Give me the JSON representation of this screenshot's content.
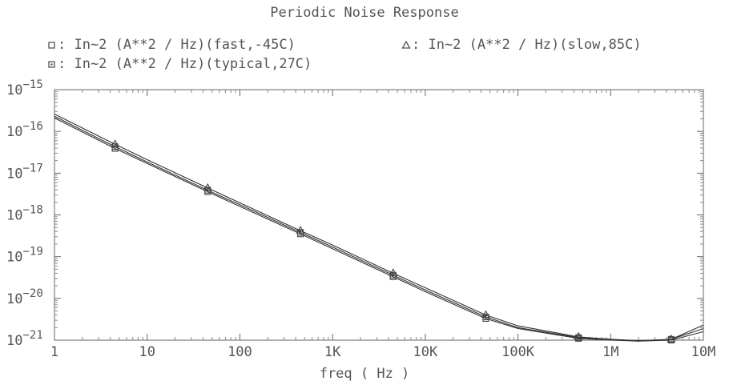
{
  "chart_data": {
    "type": "line",
    "title": "Periodic Noise Response",
    "xlabel": "freq ( Hz )",
    "ylabel": "",
    "xscale": "log",
    "yscale": "log",
    "xlim": [
      1,
      10000000
    ],
    "ylim": [
      1e-21,
      1e-15
    ],
    "x_ticks": [
      {
        "value": 1,
        "label": "1"
      },
      {
        "value": 10,
        "label": "10"
      },
      {
        "value": 100,
        "label": "100"
      },
      {
        "value": 1000,
        "label": "1K"
      },
      {
        "value": 10000,
        "label": "10K"
      },
      {
        "value": 100000,
        "label": "100K"
      },
      {
        "value": 1000000,
        "label": "1M"
      },
      {
        "value": 10000000,
        "label": "10M"
      }
    ],
    "y_ticks": [
      {
        "value": 1e-15,
        "base": "10",
        "exp": "−15"
      },
      {
        "value": 1e-16,
        "base": "10",
        "exp": "−16"
      },
      {
        "value": 1e-17,
        "base": "10",
        "exp": "−17"
      },
      {
        "value": 1e-18,
        "base": "10",
        "exp": "−18"
      },
      {
        "value": 1e-19,
        "base": "10",
        "exp": "−19"
      },
      {
        "value": 1e-20,
        "base": "10",
        "exp": "−20"
      },
      {
        "value": 1e-21,
        "base": "10",
        "exp": "−21"
      }
    ],
    "legend_placement": "top",
    "grid": false,
    "series": [
      {
        "name": ": In~2 (A**2 / Hz)(fast,-45C)",
        "marker": "square",
        "color": "#333333",
        "x": [
          1,
          4.5,
          10,
          45,
          100,
          450,
          1000,
          4500,
          10000,
          45000,
          100000,
          450000,
          1000000,
          2000000,
          4500000,
          10000000
        ],
        "y": [
          2.1e-16,
          3.9e-17,
          1.7e-17,
          3.6e-18,
          1.6e-18,
          3.5e-19,
          1.55e-19,
          3.3e-20,
          1.45e-20,
          3.3e-21,
          1.9e-21,
          1.1e-21,
          1e-21,
          9.5e-22,
          1e-21,
          1.6e-21
        ],
        "marker_x": [
          4.5,
          45,
          450,
          4500,
          45000,
          450000,
          4500000
        ]
      },
      {
        "name": ": In~2 (A**2 / Hz)(typical,27C)",
        "marker": "dot-square",
        "color": "#333333",
        "x": [
          1,
          4.5,
          10,
          45,
          100,
          450,
          1000,
          4500,
          10000,
          45000,
          100000,
          450000,
          1000000,
          2000000,
          4500000,
          10000000
        ],
        "y": [
          2.3e-16,
          4.3e-17,
          1.85e-17,
          3.9e-18,
          1.75e-18,
          3.8e-19,
          1.7e-19,
          3.6e-20,
          1.6e-20,
          3.6e-21,
          2e-21,
          1.15e-21,
          1.05e-21,
          9.8e-22,
          1.05e-21,
          1.9e-21
        ],
        "marker_x": [
          4.5,
          45,
          450,
          4500,
          45000,
          450000,
          4500000
        ]
      },
      {
        "name": ": In~2 (A**2 / Hz)(slow,85C)",
        "marker": "triangle",
        "color": "#333333",
        "x": [
          1,
          4.5,
          10,
          45,
          100,
          450,
          1000,
          4500,
          10000,
          45000,
          100000,
          450000,
          1000000,
          2000000,
          4500000,
          10000000
        ],
        "y": [
          2.6e-16,
          4.9e-17,
          2.1e-17,
          4.4e-18,
          1.95e-18,
          4.2e-19,
          1.9e-19,
          4e-20,
          1.8e-20,
          4e-21,
          2.2e-21,
          1.2e-21,
          1.05e-21,
          9.5e-22,
          1.05e-21,
          2.3e-21
        ],
        "marker_x": [
          4.5,
          45,
          450,
          4500,
          45000,
          450000,
          4500000
        ]
      }
    ]
  }
}
